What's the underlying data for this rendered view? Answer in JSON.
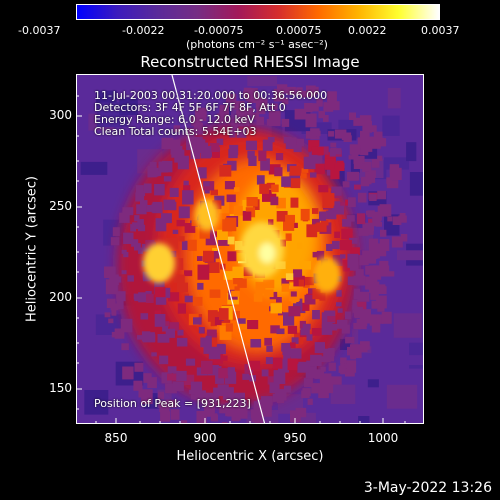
{
  "colorbar": {
    "tick_labels": [
      "-0.0037",
      "-0.0022",
      "-0.00075",
      "0.00075",
      "0.0022",
      "0.0037"
    ],
    "units": "(photons cm⁻² s⁻¹ asec⁻²)",
    "colors": [
      "#0000ff",
      "#3b1bbd",
      "#5a2a9a",
      "#762d84",
      "#a2195a",
      "#d52d2d",
      "#ff6a00",
      "#ffb400",
      "#ffff30",
      "#ffffff"
    ]
  },
  "title": "Reconstructed RHESSI Image",
  "axes": {
    "xlabel": "Heliocentric X (arcsec)",
    "ylabel": "Heliocentric Y (arcsec)",
    "xticks": [
      "850",
      "900",
      "950",
      "1000"
    ],
    "yticks": [
      "300",
      "250",
      "200",
      "150"
    ]
  },
  "info": {
    "line1": "11-Jul-2003 00:31:20.000 to 00:36:56.000",
    "line2": "Detectors: 3F 4F 5F 6F 7F 8F, Att 0",
    "line3": "Energy Range: 6.0 - 12.0 keV",
    "line4": "Clean    Total counts: 5.54E+03",
    "peak": "Position of Peak = [931,223]"
  },
  "timestamp": "3-May-2022 13:26"
}
